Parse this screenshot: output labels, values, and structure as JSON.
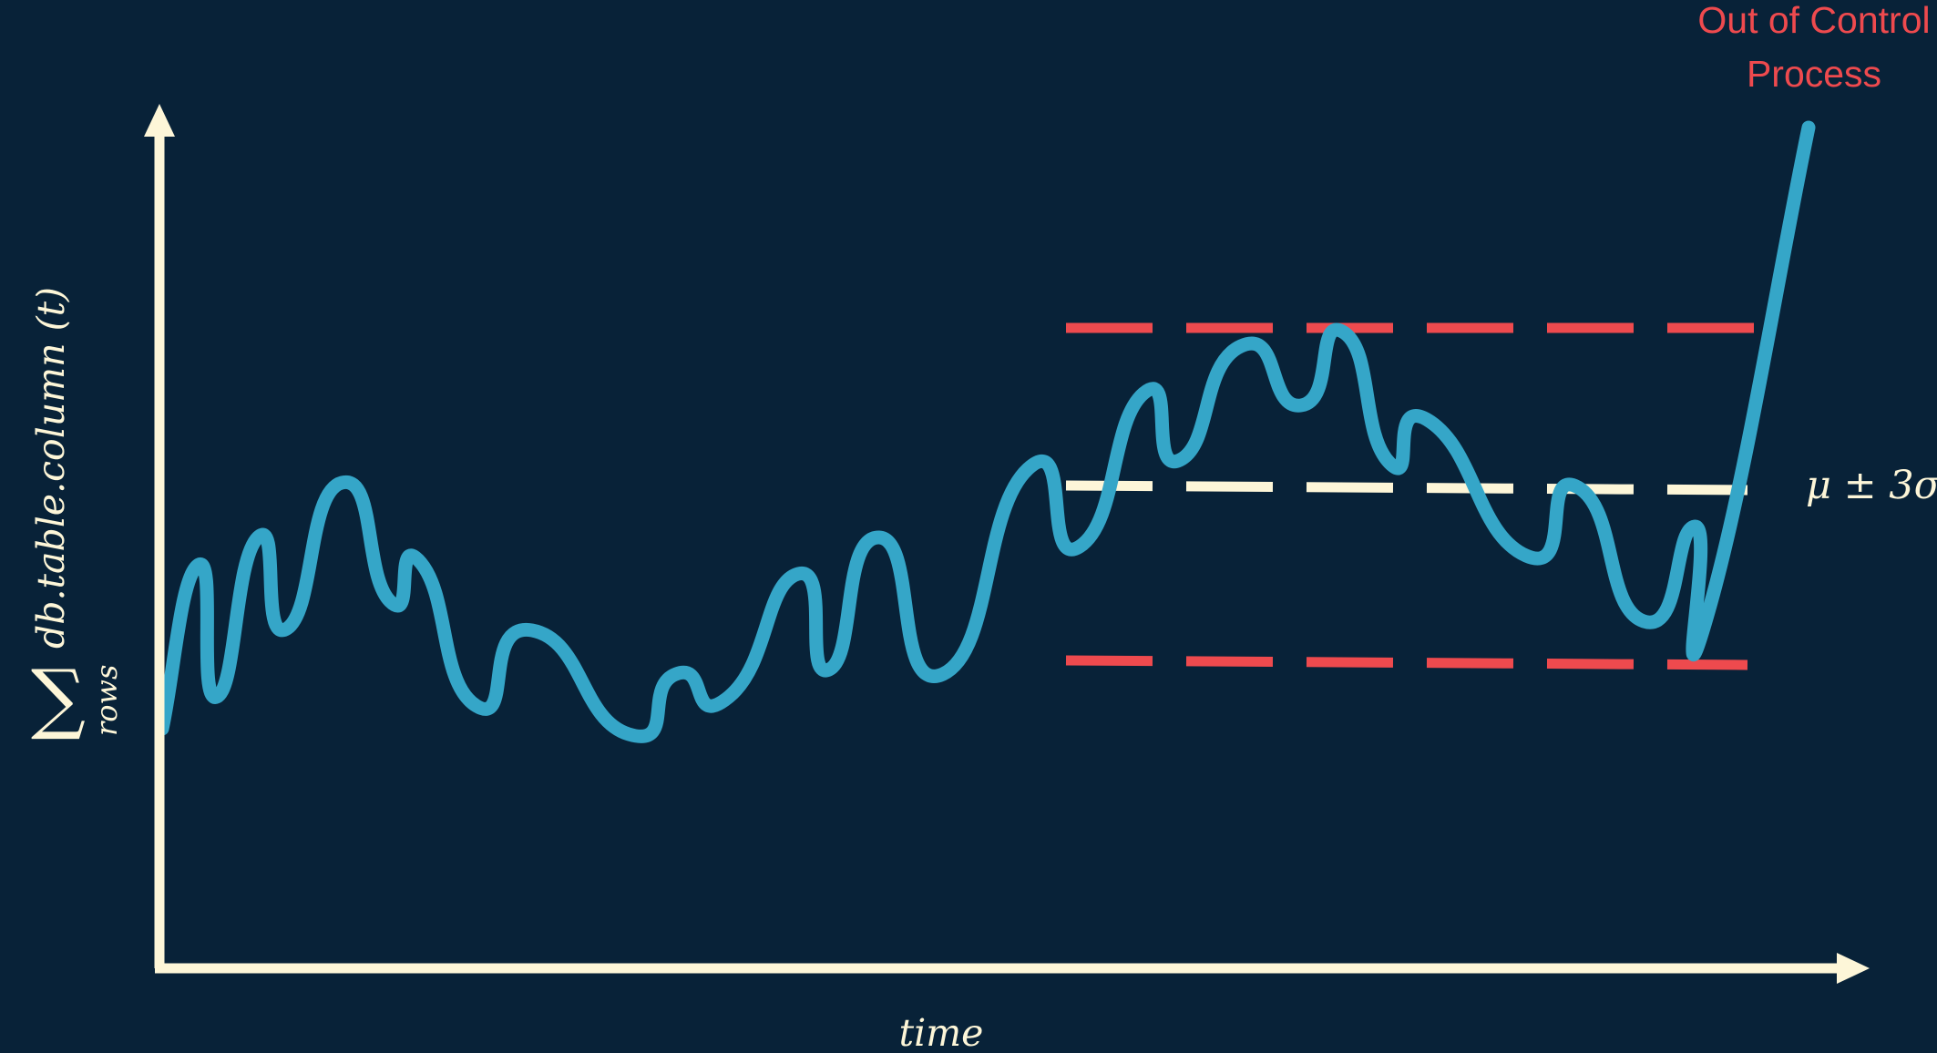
{
  "colors": {
    "background": "#082238",
    "axis": "#FDF6D8",
    "signal": "#35A6C8",
    "control_limit": "#EE4A4E",
    "mean_line": "#FDF6D8",
    "annotation": "#EE4A4E"
  },
  "labels": {
    "y_axis_sum": "∑",
    "y_axis_sub": "rows",
    "y_axis_expr": "db.table.column (t)",
    "x_axis": "time",
    "band": "μ ± 3σ",
    "alert_line1": "Out of Control",
    "alert_line2": "Process"
  }
}
